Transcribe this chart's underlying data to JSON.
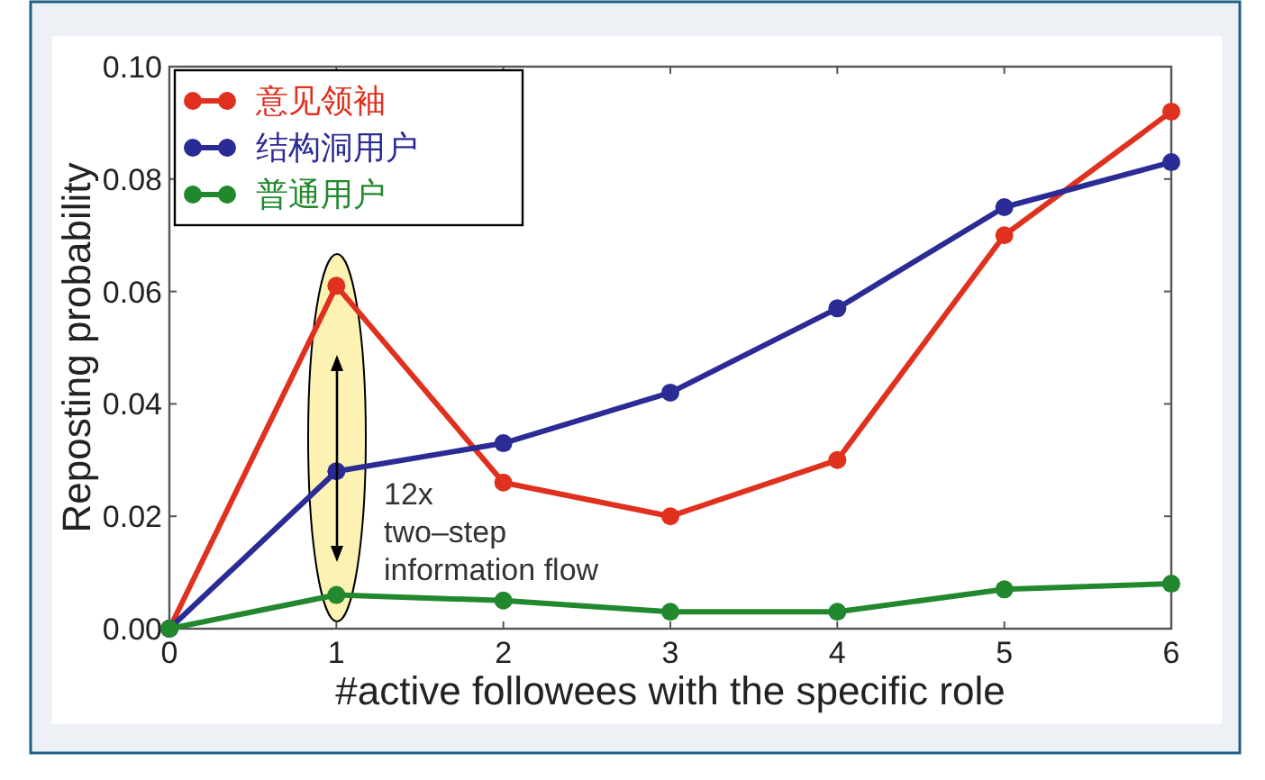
{
  "chart_data": {
    "type": "line",
    "xlabel": "#active followees with the specific role",
    "ylabel": "Reposting probability",
    "x": [
      0,
      1,
      2,
      3,
      4,
      5,
      6
    ],
    "series": [
      {
        "name": "意见领袖",
        "color": "#e0301e",
        "values": [
          0,
          0.061,
          0.026,
          0.02,
          0.03,
          0.07,
          0.092
        ]
      },
      {
        "name": "结构洞用户",
        "color": "#2b2b96",
        "values": [
          0,
          0.028,
          0.033,
          0.042,
          0.057,
          0.075,
          0.083
        ]
      },
      {
        "name": "普通用户",
        "color": "#22882e",
        "values": [
          0,
          0.006,
          0.005,
          0.003,
          0.003,
          0.007,
          0.008
        ]
      }
    ],
    "xlim": [
      0,
      6
    ],
    "xticks": [
      0,
      1,
      2,
      3,
      4,
      5,
      6
    ],
    "ylim": [
      0,
      0.1
    ],
    "yticks": [
      {
        "value": 0,
        "label": "0.00"
      },
      {
        "value": 0.02,
        "label": "0.02"
      },
      {
        "value": 0.04,
        "label": "0.04"
      },
      {
        "value": 0.06,
        "label": "0.06"
      },
      {
        "value": 0.08,
        "label": "0.08"
      },
      {
        "value": 0.1,
        "label": "0.10"
      }
    ],
    "legend": "top left",
    "marker": "circle",
    "line_style": "solid",
    "annotations": [
      "12x\ntwo–step\ninformation flow"
    ]
  }
}
